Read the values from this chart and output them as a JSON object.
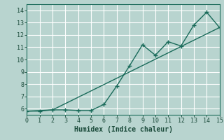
{
  "xlabel": "Humidex (Indice chaleur)",
  "xlim": [
    0,
    15
  ],
  "ylim": [
    5.5,
    14.5
  ],
  "xticks": [
    0,
    1,
    2,
    3,
    4,
    5,
    6,
    7,
    8,
    9,
    10,
    11,
    12,
    13,
    14,
    15
  ],
  "yticks": [
    6,
    7,
    8,
    9,
    10,
    11,
    12,
    13,
    14
  ],
  "background_color": "#b8d4cf",
  "grid_color": "#ffffff",
  "line_color": "#1a6b5a",
  "line1_x": [
    0,
    1,
    2,
    3,
    4,
    5,
    6,
    7,
    8,
    9,
    10,
    11,
    12,
    13,
    14,
    15
  ],
  "line1_y": [
    5.8,
    5.8,
    5.9,
    5.9,
    5.85,
    5.85,
    6.35,
    7.85,
    9.5,
    11.2,
    10.35,
    11.45,
    11.1,
    12.8,
    13.85,
    12.6
  ],
  "line2_x": [
    0,
    2,
    15
  ],
  "line2_y": [
    5.8,
    5.9,
    12.6
  ],
  "marker": "+",
  "markersize": 4,
  "linewidth": 1.0,
  "tick_fontsize": 6,
  "xlabel_fontsize": 7
}
